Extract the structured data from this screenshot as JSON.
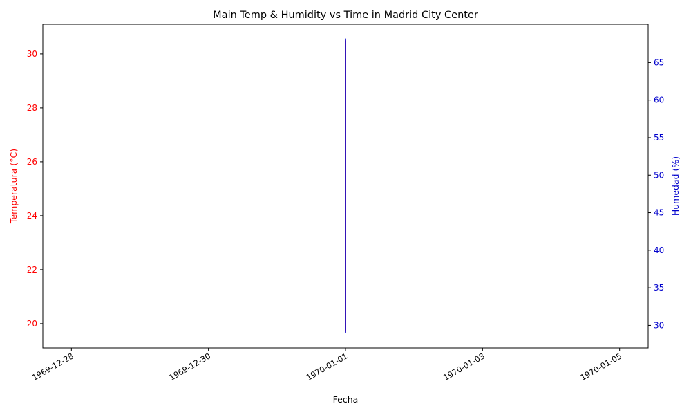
{
  "chart_data": {
    "type": "line",
    "title": "Main Temp & Humidity vs Time in Madrid City Center",
    "xlabel": "Fecha",
    "x_ticks": [
      "1969-12-28",
      "1969-12-30",
      "1970-01-01",
      "1970-01-03",
      "1970-01-05"
    ],
    "xlim": [
      "1969-12-27 14:00",
      "1970-01-05 10:00"
    ],
    "y_left": {
      "label": "Temperatura (°C)",
      "color": "#ff0000",
      "ticks": [
        20,
        22,
        24,
        26,
        28,
        30
      ],
      "ylim": [
        19.1,
        31.1
      ]
    },
    "y_right": {
      "label": "Humedad (%)",
      "color": "#0000cc",
      "ticks": [
        30,
        35,
        40,
        45,
        50,
        55,
        60,
        65
      ],
      "ylim": [
        27.0,
        70.1
      ]
    },
    "series": [
      {
        "axis": "left",
        "color": "#ff0000",
        "x": [
          "1970-01-01",
          "1970-01-01"
        ],
        "y": [
          19.7,
          30.5
        ]
      },
      {
        "axis": "right",
        "color": "#0000cc",
        "x": [
          "1970-01-01",
          "1970-01-01"
        ],
        "y": [
          29.0,
          68.2
        ]
      }
    ],
    "grid": false,
    "legend": "none"
  }
}
